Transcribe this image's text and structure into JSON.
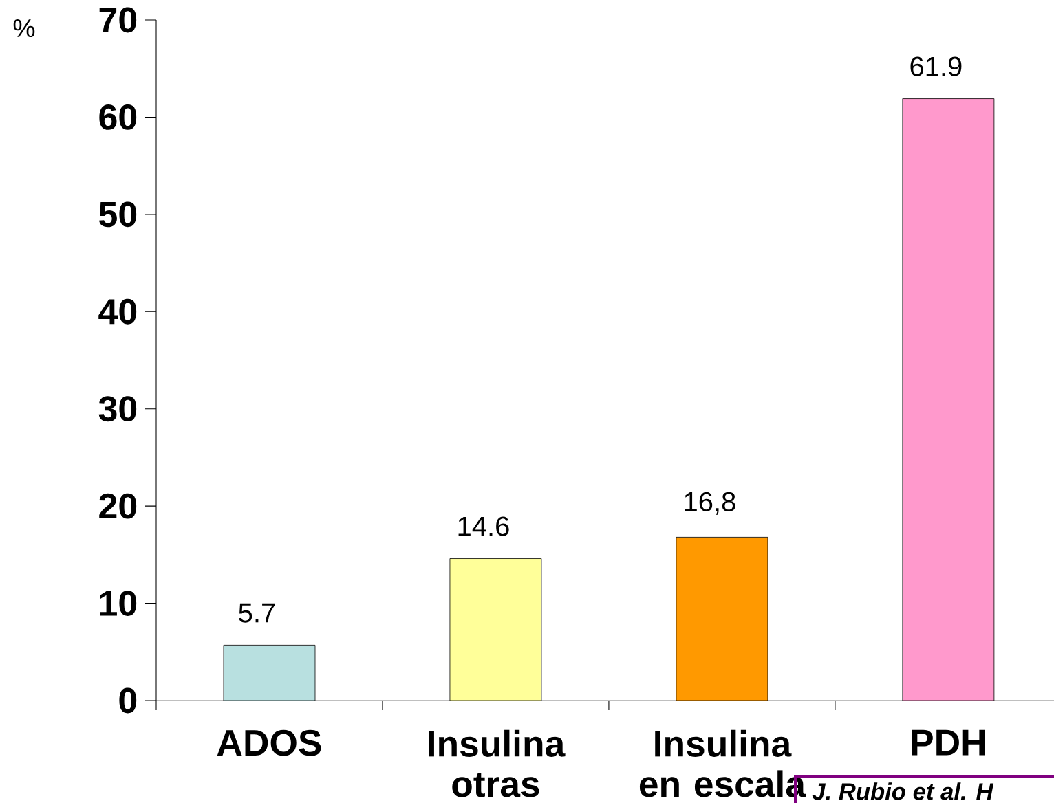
{
  "chart_data": {
    "type": "bar",
    "ylabel": "%",
    "categories": [
      "ADOS",
      "Insulina otras",
      "Insulina en escala",
      "PDH"
    ],
    "values": [
      5.7,
      14.6,
      16.8,
      61.9
    ],
    "colors": [
      "#b8e0e0",
      "#ffff99",
      "#ff9900",
      "#ff99cc"
    ],
    "value_labels": [
      "5.7",
      "14.6",
      "16,8",
      "61.9"
    ],
    "ylim": [
      0,
      70
    ],
    "yticks": [
      0,
      10,
      20,
      30,
      40,
      50,
      60,
      70
    ],
    "grid": false,
    "annotations": [
      "J. Rubio et al. H"
    ]
  }
}
